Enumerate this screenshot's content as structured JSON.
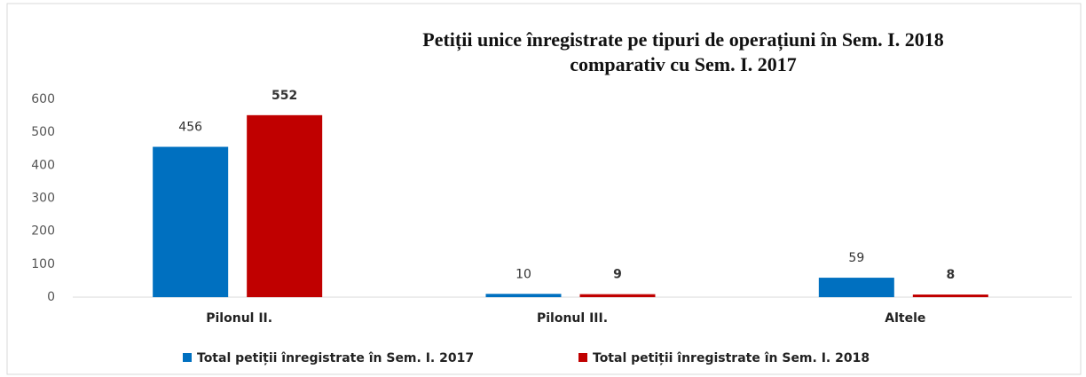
{
  "chart_data": {
    "type": "bar",
    "title": [
      "Petiții unice înregistrate pe tipuri de operațiuni în Sem. I. 2018",
      "comparativ  cu Sem. I. 2017"
    ],
    "categories": [
      "Pilonul II.",
      "Pilonul III.",
      "Altele"
    ],
    "series": [
      {
        "name": "Total petiții înregistrate în Sem. I. 2017",
        "color": "#0070c0",
        "values": [
          456,
          10,
          59
        ]
      },
      {
        "name": "Total petiții înregistrate în Sem. I. 2018",
        "color": "#c00000",
        "values": [
          552,
          9,
          8
        ]
      }
    ],
    "ylim": [
      0,
      600
    ],
    "yticks": [
      0,
      100,
      200,
      300,
      400,
      500,
      600
    ],
    "grid": false,
    "legend": "bottom"
  }
}
